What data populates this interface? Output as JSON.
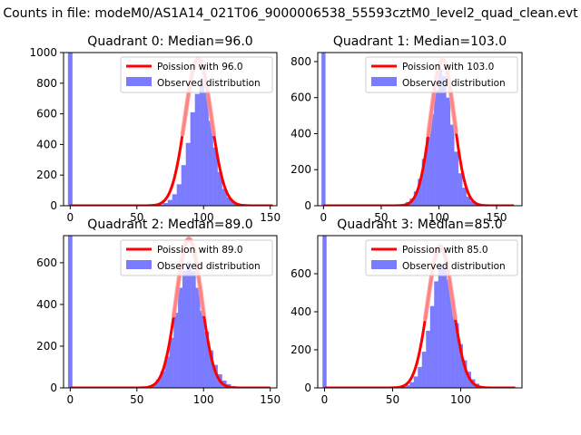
{
  "figure": {
    "suptitle": "Counts in file: modeM0/AS1A14_021T06_9000006538_55593cztM0_level2_quad_clean.evt"
  },
  "colors": {
    "hist": "#7b7bff",
    "poisson_line": "#ff0000",
    "poisson_overlay": "#ff9a9a",
    "axis": "#000000"
  },
  "chart_data": [
    {
      "type": "bar",
      "title": "Quadrant 0: Median=96.0",
      "legend": {
        "placement": "top-right",
        "line_label": "Poission with 96.0",
        "hist_label": "Observed distribution"
      },
      "xlim": [
        -5,
        155
      ],
      "ylim": [
        0,
        1000
      ],
      "xticks": [
        0,
        50,
        100,
        150
      ],
      "yticks": [
        0,
        200,
        400,
        600,
        800,
        1000
      ],
      "median": 96,
      "bin_width": 3.4,
      "zero_bar": {
        "x": 0,
        "value": 1000
      },
      "hist": [
        {
          "x": 61.2,
          "value": 3
        },
        {
          "x": 64.6,
          "value": 4
        },
        {
          "x": 68.0,
          "value": 8
        },
        {
          "x": 71.4,
          "value": 18
        },
        {
          "x": 74.8,
          "value": 38
        },
        {
          "x": 78.2,
          "value": 75
        },
        {
          "x": 81.6,
          "value": 140
        },
        {
          "x": 85.0,
          "value": 265
        },
        {
          "x": 88.4,
          "value": 410
        },
        {
          "x": 91.8,
          "value": 610
        },
        {
          "x": 95.2,
          "value": 730
        },
        {
          "x": 98.6,
          "value": 800
        },
        {
          "x": 102.0,
          "value": 740
        },
        {
          "x": 105.4,
          "value": 555
        },
        {
          "x": 108.8,
          "value": 380
        },
        {
          "x": 112.2,
          "value": 220
        },
        {
          "x": 115.6,
          "value": 110
        },
        {
          "x": 119.0,
          "value": 55
        },
        {
          "x": 122.4,
          "value": 25
        },
        {
          "x": 125.8,
          "value": 10
        },
        {
          "x": 129.2,
          "value": 4
        },
        {
          "x": 132.6,
          "value": 2
        }
      ],
      "curve": {
        "x0": 0,
        "x1": 152,
        "peak": 960
      }
    },
    {
      "type": "bar",
      "title": "Quadrant 1: Median=103.0",
      "legend": {
        "placement": "top-right",
        "line_label": "Poission with 103.0",
        "hist_label": "Observed distribution"
      },
      "xlim": [
        -5,
        172
      ],
      "ylim": [
        0,
        850
      ],
      "xticks": [
        0,
        50,
        100,
        150
      ],
      "yticks": [
        0,
        200,
        400,
        600,
        800
      ],
      "median": 103,
      "bin_width": 3.5,
      "zero_bar": {
        "x": 0,
        "value": 850
      },
      "hist": [
        {
          "x": 66.0,
          "value": 3
        },
        {
          "x": 69.5,
          "value": 8
        },
        {
          "x": 73.0,
          "value": 20
        },
        {
          "x": 76.5,
          "value": 40
        },
        {
          "x": 80.0,
          "value": 80
        },
        {
          "x": 83.5,
          "value": 150
        },
        {
          "x": 87.0,
          "value": 260
        },
        {
          "x": 90.5,
          "value": 380
        },
        {
          "x": 94.0,
          "value": 510
        },
        {
          "x": 97.5,
          "value": 640
        },
        {
          "x": 101.0,
          "value": 760
        },
        {
          "x": 104.5,
          "value": 720
        },
        {
          "x": 108.0,
          "value": 600
        },
        {
          "x": 111.5,
          "value": 450
        },
        {
          "x": 115.0,
          "value": 300
        },
        {
          "x": 118.5,
          "value": 180
        },
        {
          "x": 122.0,
          "value": 100
        },
        {
          "x": 125.5,
          "value": 50
        },
        {
          "x": 129.0,
          "value": 25
        },
        {
          "x": 132.5,
          "value": 12
        },
        {
          "x": 136.0,
          "value": 6
        },
        {
          "x": 139.5,
          "value": 3
        }
      ],
      "curve": {
        "x0": 0,
        "x1": 165,
        "peak": 810
      }
    },
    {
      "type": "bar",
      "title": "Quadrant 2: Median=89.0",
      "legend": {
        "placement": "top-right",
        "line_label": "Poission with 89.0",
        "hist_label": "Observed distribution"
      },
      "xlim": [
        -5,
        155
      ],
      "ylim": [
        0,
        730
      ],
      "xticks": [
        0,
        50,
        100,
        150
      ],
      "yticks": [
        0,
        200,
        400,
        600
      ],
      "median": 89,
      "bin_width": 3.3,
      "zero_bar": {
        "x": 0,
        "value": 730
      },
      "hist": [
        {
          "x": 52.8,
          "value": 2
        },
        {
          "x": 56.1,
          "value": 4
        },
        {
          "x": 59.4,
          "value": 8
        },
        {
          "x": 62.7,
          "value": 18
        },
        {
          "x": 66.0,
          "value": 40
        },
        {
          "x": 69.3,
          "value": 80
        },
        {
          "x": 72.6,
          "value": 150
        },
        {
          "x": 75.9,
          "value": 240
        },
        {
          "x": 79.2,
          "value": 360
        },
        {
          "x": 82.5,
          "value": 480
        },
        {
          "x": 85.8,
          "value": 560
        },
        {
          "x": 89.1,
          "value": 600
        },
        {
          "x": 92.4,
          "value": 560
        },
        {
          "x": 95.7,
          "value": 480
        },
        {
          "x": 99.0,
          "value": 370
        },
        {
          "x": 102.3,
          "value": 270
        },
        {
          "x": 105.6,
          "value": 180
        },
        {
          "x": 108.9,
          "value": 110
        },
        {
          "x": 112.2,
          "value": 65
        },
        {
          "x": 115.5,
          "value": 35
        },
        {
          "x": 118.8,
          "value": 18
        },
        {
          "x": 122.1,
          "value": 9
        },
        {
          "x": 125.4,
          "value": 4
        },
        {
          "x": 128.7,
          "value": 2
        }
      ],
      "curve": {
        "x0": 0,
        "x1": 150,
        "peak": 715
      }
    },
    {
      "type": "bar",
      "title": "Quadrant 3: Median=85.0",
      "legend": {
        "placement": "top-right",
        "line_label": "Poission with 85.0",
        "hist_label": "Observed distribution"
      },
      "xlim": [
        -5,
        145
      ],
      "ylim": [
        0,
        800
      ],
      "xticks": [
        0,
        50,
        100
      ],
      "yticks": [
        0,
        200,
        400,
        600
      ],
      "median": 85,
      "bin_width": 3.0,
      "zero_bar": {
        "x": 0,
        "value": 800
      },
      "hist": [
        {
          "x": 55.0,
          "value": 3
        },
        {
          "x": 58.0,
          "value": 6
        },
        {
          "x": 61.0,
          "value": 14
        },
        {
          "x": 64.0,
          "value": 30
        },
        {
          "x": 67.0,
          "value": 60
        },
        {
          "x": 70.0,
          "value": 110
        },
        {
          "x": 73.0,
          "value": 190
        },
        {
          "x": 76.0,
          "value": 300
        },
        {
          "x": 79.0,
          "value": 430
        },
        {
          "x": 82.0,
          "value": 560
        },
        {
          "x": 85.0,
          "value": 650
        },
        {
          "x": 88.0,
          "value": 640
        },
        {
          "x": 91.0,
          "value": 570
        },
        {
          "x": 94.0,
          "value": 460
        },
        {
          "x": 97.0,
          "value": 340
        },
        {
          "x": 100.0,
          "value": 230
        },
        {
          "x": 103.0,
          "value": 145
        },
        {
          "x": 106.0,
          "value": 85
        },
        {
          "x": 109.0,
          "value": 45
        },
        {
          "x": 112.0,
          "value": 22
        },
        {
          "x": 115.0,
          "value": 10
        },
        {
          "x": 118.0,
          "value": 5
        },
        {
          "x": 121.0,
          "value": 2
        }
      ],
      "curve": {
        "x0": 0,
        "x1": 140,
        "peak": 745
      }
    }
  ]
}
